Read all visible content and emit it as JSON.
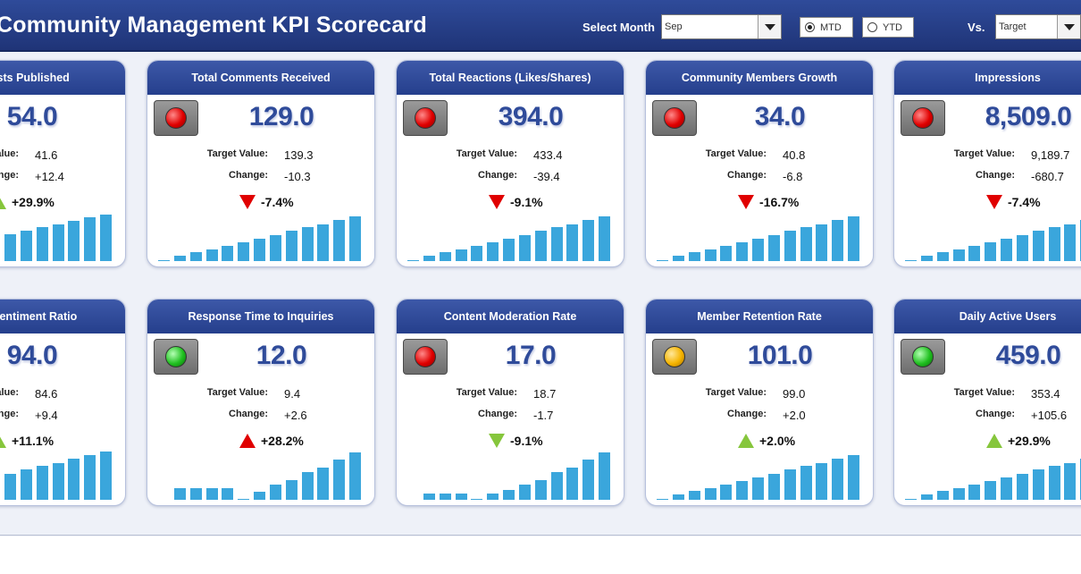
{
  "header": {
    "title": "Community Management KPI Scorecard",
    "select_month_label": "Select Month",
    "month_value": "Sep",
    "mtd_label": "MTD",
    "ytd_label": "YTD",
    "vs_label": "Vs.",
    "vs_value": "Target",
    "mtd_selected": true
  },
  "colors": {
    "header_bg": "#253f8c",
    "value_blue": "#2f4b9a",
    "bar_blue": "#3aa6dc",
    "red": "#e00000",
    "green": "#86c63c",
    "amber": "#f5b400"
  },
  "labels": {
    "target": "Target Value:",
    "change": "Change:"
  },
  "cards": [
    {
      "title": "Total Posts Published",
      "value": "54.0",
      "target": "41.6",
      "change": "+12.4",
      "pct": "+29.9%",
      "light": "green",
      "arrow": "up-green",
      "bars": [
        0.34,
        0.4,
        0.46,
        0.53,
        0.6,
        0.67,
        0.73,
        0.8,
        0.87,
        0.93
      ]
    },
    {
      "title": "Total Comments Received",
      "value": "129.0",
      "target": "139.3",
      "change": "-10.3",
      "pct": "-7.4%",
      "light": "red",
      "arrow": "down-red",
      "bars": [
        0.02,
        0.1,
        0.17,
        0.24,
        0.31,
        0.38,
        0.45,
        0.52,
        0.6,
        0.67,
        0.74,
        0.82,
        0.9
      ]
    },
    {
      "title": "Total Reactions (Likes/Shares)",
      "value": "394.0",
      "target": "433.4",
      "change": "-39.4",
      "pct": "-9.1%",
      "light": "red",
      "arrow": "down-red",
      "bars": [
        0.02,
        0.1,
        0.17,
        0.24,
        0.31,
        0.38,
        0.45,
        0.52,
        0.6,
        0.67,
        0.74,
        0.82,
        0.9
      ]
    },
    {
      "title": "Community Members Growth",
      "value": "34.0",
      "target": "40.8",
      "change": "-6.8",
      "pct": "-16.7%",
      "light": "red",
      "arrow": "down-red",
      "bars": [
        0.02,
        0.1,
        0.17,
        0.24,
        0.31,
        0.38,
        0.45,
        0.52,
        0.6,
        0.67,
        0.74,
        0.82,
        0.9
      ]
    },
    {
      "title": "Impressions",
      "value": "8,509.0",
      "target": "9,189.7",
      "change": "-680.7",
      "pct": "-7.4%",
      "light": "red",
      "arrow": "down-red",
      "bars": [
        0.02,
        0.1,
        0.17,
        0.24,
        0.31,
        0.38,
        0.45,
        0.52,
        0.6,
        0.67,
        0.74,
        0.82,
        0.9
      ]
    },
    {
      "title": "Positive Sentiment Ratio",
      "value": "94.0",
      "target": "84.6",
      "change": "+9.4",
      "pct": "+11.1%",
      "light": "green",
      "arrow": "up-green",
      "bars": [
        0.38,
        0.45,
        0.52,
        0.6,
        0.67,
        0.74,
        0.82,
        0.9,
        0.97
      ]
    },
    {
      "title": "Response Time to Inquiries",
      "value": "12.0",
      "target": "9.4",
      "change": "+2.6",
      "pct": "+28.2%",
      "light": "green",
      "arrow": "up-red",
      "bars": [
        0.23,
        0.23,
        0.23,
        0.23,
        0,
        0.16,
        0.3,
        0.4,
        0.55,
        0.65,
        0.8,
        0.95
      ]
    },
    {
      "title": "Content Moderation Rate",
      "value": "17.0",
      "target": "18.7",
      "change": "-1.7",
      "pct": "-9.1%",
      "light": "red",
      "arrow": "down-green",
      "bars": [
        0.12,
        0.12,
        0.12,
        0.02,
        0.12,
        0.2,
        0.3,
        0.4,
        0.55,
        0.65,
        0.8,
        0.95
      ]
    },
    {
      "title": "Member Retention Rate",
      "value": "101.0",
      "target": "99.0",
      "change": "+2.0",
      "pct": "+2.0%",
      "light": "amber",
      "arrow": "up-green",
      "bars": [
        0.02,
        0.1,
        0.17,
        0.24,
        0.31,
        0.38,
        0.45,
        0.52,
        0.6,
        0.67,
        0.74,
        0.82,
        0.9
      ]
    },
    {
      "title": "Daily Active Users",
      "value": "459.0",
      "target": "353.4",
      "change": "+105.6",
      "pct": "+29.9%",
      "light": "green",
      "arrow": "up-green",
      "bars": [
        0.02,
        0.1,
        0.17,
        0.24,
        0.31,
        0.38,
        0.45,
        0.52,
        0.6,
        0.67,
        0.74,
        0.82,
        0.9
      ]
    }
  ]
}
